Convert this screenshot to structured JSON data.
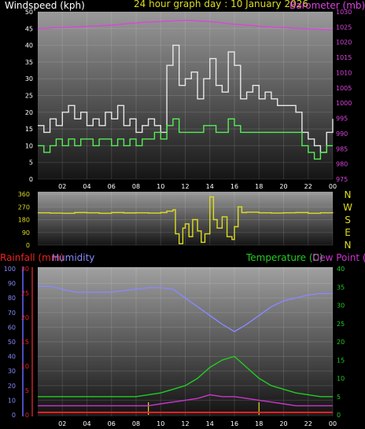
{
  "header": {
    "left_title": "Windspeed (kph)",
    "center_title": "24 hour graph day : 10 January 2026",
    "right_title": "Barometer (mb)"
  },
  "colors": {
    "background": "#000000",
    "wind_gust": "#e8e8e8",
    "wind_avg": "#55ee55",
    "barometer": "#dd44dd",
    "direction": "#dddd22",
    "rainfall": "#ee2222",
    "humidity": "#8888ff",
    "temperature": "#22cc22",
    "dew_point": "#cc33cc",
    "marker": "#dddd22"
  },
  "x_tick_labels": [
    "02",
    "04",
    "06",
    "08",
    "10",
    "12",
    "14",
    "16",
    "18",
    "20",
    "22",
    "00"
  ],
  "chart_data": [
    {
      "type": "line",
      "name": "wind-barometer",
      "x_hours": [
        0,
        0.5,
        1,
        1.5,
        2,
        2.5,
        3,
        3.5,
        4,
        4.5,
        5,
        5.5,
        6,
        6.5,
        7,
        7.5,
        8,
        8.5,
        9,
        9.5,
        10,
        10.5,
        11,
        11.5,
        12,
        12.5,
        13,
        13.5,
        14,
        14.5,
        15,
        15.5,
        16,
        16.5,
        17,
        17.5,
        18,
        18.5,
        19,
        19.5,
        20,
        20.5,
        21,
        21.5,
        22,
        22.5,
        23,
        23.5,
        24
      ],
      "left_axis": {
        "label": "Windspeed (kph)",
        "ticks": [
          0,
          5,
          10,
          15,
          20,
          25,
          30,
          35,
          40,
          45,
          50
        ],
        "range": [
          0,
          50
        ]
      },
      "right_axis": {
        "label": "Barometer (mb)",
        "ticks": [
          975,
          980,
          985,
          990,
          995,
          1000,
          1005,
          1010,
          1015,
          1020,
          1025,
          1030
        ],
        "range": [
          975,
          1030
        ]
      },
      "series": [
        {
          "key": "gust",
          "axis": "left",
          "values": [
            16,
            14,
            18,
            16,
            20,
            22,
            18,
            20,
            16,
            18,
            16,
            20,
            18,
            22,
            16,
            18,
            14,
            16,
            18,
            16,
            14,
            34,
            40,
            28,
            30,
            32,
            24,
            30,
            36,
            28,
            26,
            38,
            34,
            24,
            26,
            28,
            24,
            26,
            24,
            22,
            22,
            22,
            20,
            14,
            12,
            10,
            8,
            14,
            18
          ]
        },
        {
          "key": "avg",
          "axis": "left",
          "values": [
            10,
            8,
            10,
            12,
            10,
            12,
            10,
            12,
            12,
            10,
            12,
            12,
            10,
            12,
            10,
            12,
            10,
            12,
            12,
            14,
            12,
            16,
            18,
            14,
            14,
            14,
            14,
            16,
            16,
            14,
            14,
            18,
            16,
            14,
            14,
            14,
            14,
            14,
            14,
            14,
            14,
            14,
            14,
            10,
            8,
            6,
            8,
            10,
            10
          ]
        },
        {
          "key": "barometer",
          "axis": "right",
          "values": [
            1024.5,
            1024.5,
            1024.7,
            1024.8,
            1024.8,
            1025,
            1025,
            1025.1,
            1025.2,
            1025.3,
            1025.4,
            1025.5,
            1025.6,
            1025.8,
            1026,
            1026.2,
            1026.3,
            1026.5,
            1026.6,
            1026.7,
            1026.8,
            1026.9,
            1027,
            1027.1,
            1027.2,
            1027.1,
            1027,
            1026.9,
            1026.8,
            1026.6,
            1026.4,
            1026.1,
            1025.9,
            1025.8,
            1025.6,
            1025.5,
            1025.3,
            1025.1,
            1025,
            1024.9,
            1024.8,
            1024.7,
            1024.6,
            1024.5,
            1024.4,
            1024.3,
            1024.2,
            1024.1,
            1024
          ]
        }
      ]
    },
    {
      "type": "line",
      "name": "wind-direction",
      "left_axis": {
        "ticks": [
          0,
          90,
          180,
          270,
          360
        ],
        "range": [
          0,
          360
        ]
      },
      "compass_labels": [
        "N",
        "W",
        "S",
        "E",
        "N"
      ],
      "x_hours": [
        0,
        1,
        2,
        3,
        4,
        5,
        6,
        7,
        8,
        9,
        10,
        10.5,
        11,
        11.2,
        11.5,
        11.8,
        12,
        12.3,
        12.6,
        13,
        13.3,
        13.6,
        14,
        14.3,
        14.6,
        15,
        15.4,
        15.8,
        16,
        16.3,
        16.6,
        17,
        18,
        19,
        20,
        21,
        22,
        23,
        24
      ],
      "values": [
        228,
        226,
        225,
        230,
        228,
        225,
        230,
        227,
        228,
        226,
        230,
        240,
        250,
        80,
        10,
        120,
        150,
        60,
        180,
        100,
        20,
        80,
        340,
        180,
        120,
        200,
        60,
        40,
        130,
        270,
        230,
        232,
        228,
        226,
        228,
        230,
        225,
        228,
        226
      ]
    },
    {
      "type": "line",
      "name": "rain-humidity-temperature",
      "left_axis_humidity": {
        "label": "Humidity",
        "ticks": [
          0,
          10,
          20,
          30,
          40,
          50,
          60,
          70,
          80,
          90,
          100
        ],
        "range": [
          0,
          100
        ]
      },
      "left_axis_rainfall": {
        "label": "Rainfall (mm)",
        "ticks": [
          0,
          5,
          10,
          15,
          20,
          25,
          30
        ],
        "range": [
          0,
          30
        ]
      },
      "right_axis": {
        "label": "Temperature (C)",
        "ticks": [
          0,
          5,
          10,
          15,
          20,
          25,
          30,
          35,
          40
        ],
        "range": [
          0,
          40
        ]
      },
      "dew_label": "Dew Point (C)",
      "x_hours": [
        0,
        1,
        2,
        3,
        4,
        5,
        6,
        7,
        8,
        9,
        10,
        11,
        12,
        13,
        14,
        15,
        16,
        17,
        18,
        19,
        20,
        21,
        22,
        23,
        24
      ],
      "series": [
        {
          "key": "humidity",
          "values": [
            88,
            88,
            86,
            84,
            84,
            84,
            84,
            85,
            86,
            87,
            87,
            86,
            80,
            74,
            68,
            62,
            57,
            62,
            68,
            74,
            78,
            80,
            82,
            83,
            83
          ]
        },
        {
          "key": "temperature",
          "values": [
            5,
            5,
            5,
            5,
            5,
            5,
            5,
            5,
            5,
            5.5,
            6,
            7,
            8,
            10,
            13,
            15,
            16,
            13,
            10,
            8,
            7,
            6,
            5.5,
            5,
            5
          ]
        },
        {
          "key": "dew_point",
          "values": [
            2.5,
            2.5,
            2.5,
            2.5,
            2.5,
            2.5,
            2.5,
            2.5,
            2.5,
            2.5,
            3,
            3.5,
            4,
            4.5,
            5.5,
            5,
            5,
            4.5,
            4,
            3.5,
            3,
            2.5,
            2.5,
            2.5,
            2.5
          ]
        },
        {
          "key": "rainfall",
          "values": [
            0.5,
            0.5,
            0.5,
            0.5,
            0.5,
            0.5,
            0.5,
            0.5,
            0.5,
            0.5,
            0.5,
            0.5,
            0.5,
            0.5,
            0.5,
            0.5,
            0.5,
            0.5,
            0.5,
            0.5,
            0.5,
            0.5,
            0.5,
            0.5,
            0.5
          ]
        }
      ],
      "markers_hours": [
        9,
        18
      ]
    }
  ]
}
